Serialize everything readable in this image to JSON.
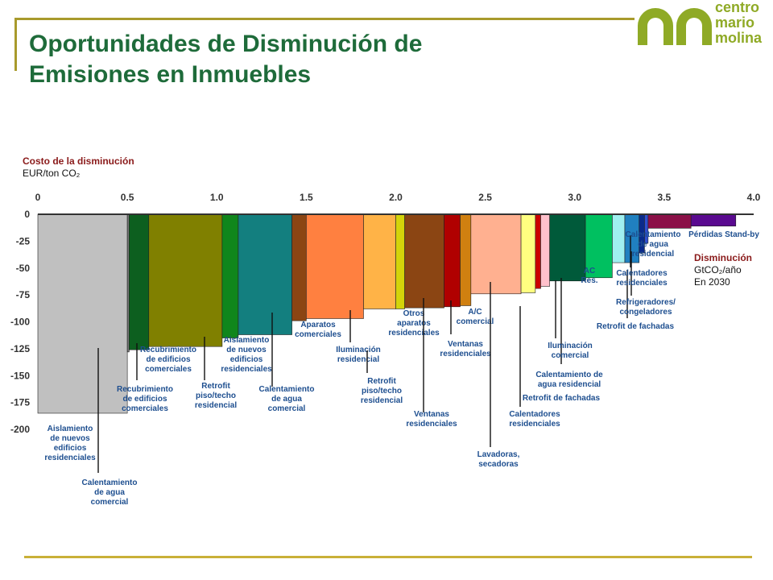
{
  "title_line1": "Oportunidades de Disminución de",
  "title_line2": "Emisiones en Inmuebles",
  "logo": {
    "line1": "centro",
    "line2": "mario",
    "line3": "molina",
    "color": "#8faa26"
  },
  "y_axis": {
    "title": "Costo de la disminución",
    "unit": "EUR/ton CO₂"
  },
  "x_axis": {
    "title": "Disminución",
    "unit": "GtCO₂/año",
    "note": "En 2030"
  },
  "chart_data": {
    "type": "bar",
    "subtype": "marginal-abatement-cost-curve",
    "xlim": [
      0,
      4.0
    ],
    "ylim": [
      -200,
      0
    ],
    "x_ticks": [
      "0",
      "0.5",
      "1.0",
      "1.5",
      "2.0",
      "2.5",
      "3.0",
      "3.5",
      "4.0"
    ],
    "y_ticks": [
      "0",
      "-25",
      "-50",
      "-75",
      "-100",
      "-125",
      "-150",
      "-175",
      "-200"
    ],
    "bars": [
      {
        "label": "Aislamiento de nuevos edificios residenciales",
        "x0": 0.0,
        "x1": 0.5,
        "cost": -185,
        "color": "#c0c0c0"
      },
      {
        "label": "Calentamiento de agua comercial",
        "x0": 0.5,
        "x1": 0.51,
        "cost": -128,
        "color": "#7a7a7a"
      },
      {
        "label": "Recubrimiento de edificios comerciales",
        "x0": 0.51,
        "x1": 0.62,
        "cost": -126,
        "color": "#0d5f1f"
      },
      {
        "label": "Recubrimiento de edificios comerciales",
        "x0": 0.62,
        "x1": 1.03,
        "cost": -123,
        "color": "#808000"
      },
      {
        "label": "Retrofit piso/techo residencial",
        "x0": 1.03,
        "x1": 1.12,
        "cost": -115,
        "color": "#10861c"
      },
      {
        "label": "Aislamiento de nuevos edificios residenciales",
        "x0": 1.12,
        "x1": 1.42,
        "cost": -112,
        "color": "#137f7f"
      },
      {
        "label": "Calentamiento de agua comercial",
        "x0": 1.42,
        "x1": 1.5,
        "cost": -99,
        "color": "#8b4513"
      },
      {
        "label": "Aparatos comerciales",
        "x0": 1.5,
        "x1": 1.82,
        "cost": -97,
        "color": "#ff8040"
      },
      {
        "label": "Iluminación residencial",
        "x0": 1.82,
        "x1": 2.0,
        "cost": -88,
        "color": "#ffb347"
      },
      {
        "label": "Retrofit piso/techo residencial",
        "x0": 2.0,
        "x1": 2.05,
        "cost": -88,
        "color": "#d4d40a"
      },
      {
        "label": "Otros aparatos residenciales",
        "x0": 2.05,
        "x1": 2.27,
        "cost": -87,
        "color": "#8b4513"
      },
      {
        "label": "Ventanas residenciales",
        "x0": 2.27,
        "x1": 2.36,
        "cost": -86,
        "color": "#b00000"
      },
      {
        "label": "Ventanas residenciales",
        "x0": 2.36,
        "x1": 2.42,
        "cost": -85,
        "color": "#d08010"
      },
      {
        "label": "A/C comercial",
        "x0": 2.42,
        "x1": 2.7,
        "cost": -74,
        "color": "#ffb090"
      },
      {
        "label": "Lavadoras, secadoras",
        "x0": 2.7,
        "x1": 2.78,
        "cost": -73,
        "color": "#ffff80"
      },
      {
        "label": "Calentadores residenciales",
        "x0": 2.78,
        "x1": 2.81,
        "cost": -69,
        "color": "#cc0000"
      },
      {
        "label": "Retrofit de fachadas",
        "x0": 2.81,
        "x1": 2.86,
        "cost": -67,
        "color": "#ffc0cb"
      },
      {
        "label": "Calentamiento de agua residencial",
        "x0": 2.86,
        "x1": 3.06,
        "cost": -62,
        "color": "#005a3a"
      },
      {
        "label": "Iluminación comercial",
        "x0": 3.06,
        "x1": 3.21,
        "cost": -59,
        "color": "#00c060"
      },
      {
        "label": "AC Res.",
        "x0": 3.21,
        "x1": 3.28,
        "cost": -45,
        "color": "#a0f0f0"
      },
      {
        "label": "Retrofit de fachadas",
        "x0": 3.28,
        "x1": 3.36,
        "cost": -45,
        "color": "#2080c0"
      },
      {
        "label": "Refrigeradores/ congeladores",
        "x0": 3.36,
        "x1": 3.39,
        "cost": -36,
        "color": "#0a2a8a"
      },
      {
        "label": "Calentadores residenciales",
        "x0": 3.39,
        "x1": 3.41,
        "cost": -27,
        "color": "#3050d0"
      },
      {
        "label": "Calentamiento de agua residencial",
        "x0": 3.41,
        "x1": 3.65,
        "cost": -13,
        "color": "#8b1048"
      },
      {
        "label": "Pérdidas Stand-by",
        "x0": 3.65,
        "x1": 3.9,
        "cost": -11,
        "color": "#5a0a90"
      }
    ],
    "annotations": [
      {
        "lines": [
          "Aislamiento",
          "de nuevos",
          "edificios",
          "residenciales"
        ],
        "color": "#1d4e8f"
      },
      {
        "lines": [
          "Calentamiento",
          "de agua",
          "comercial"
        ],
        "color": "#1d4e8f"
      },
      {
        "lines": [
          "Recubrimiento",
          "de edificios",
          "comerciales"
        ],
        "color": "#1d4e8f"
      },
      {
        "lines": [
          "Recubrimiento",
          "de edificios",
          "comerciales"
        ],
        "color": "#1d4e8f"
      },
      {
        "lines": [
          "Retrofit",
          "piso/techo",
          "residencial"
        ],
        "color": "#1d4e8f"
      },
      {
        "lines": [
          "Aislamiento",
          "de nuevos",
          "edificios",
          "residenciales"
        ],
        "color": "#1d4e8f"
      },
      {
        "lines": [
          "Calentamiento",
          "de agua",
          "comercial"
        ],
        "color": "#1d4e8f"
      },
      {
        "lines": [
          "Aparatos",
          "comerciales"
        ],
        "color": "#1d4e8f"
      },
      {
        "lines": [
          "Iluminación",
          "residencial"
        ],
        "color": "#1d4e8f"
      },
      {
        "lines": [
          "Retrofit",
          "piso/techo",
          "residencial"
        ],
        "color": "#1d4e8f"
      },
      {
        "lines": [
          "Otros",
          "aparatos",
          "residenciales"
        ],
        "color": "#1d4e8f"
      },
      {
        "lines": [
          "Ventanas",
          "residenciales"
        ],
        "color": "#1d4e8f"
      },
      {
        "lines": [
          "Ventanas",
          "residenciales"
        ],
        "color": "#1d4e8f"
      },
      {
        "lines": [
          "A/C",
          "comercial"
        ],
        "color": "#1d4e8f"
      },
      {
        "lines": [
          "Lavadoras,",
          "secadoras"
        ],
        "color": "#1d4e8f"
      },
      {
        "lines": [
          "Calentadores",
          "residenciales"
        ],
        "color": "#1d4e8f"
      },
      {
        "lines": [
          "Retrofit de fachadas"
        ],
        "color": "#1d4e8f"
      },
      {
        "lines": [
          "Calentamiento de",
          "agua residencial"
        ],
        "color": "#1d4e8f"
      },
      {
        "lines": [
          "Iluminación",
          "comercial"
        ],
        "color": "#1d4e8f"
      },
      {
        "lines": [
          "AC",
          "Res."
        ],
        "color": "#1d4e8f"
      },
      {
        "lines": [
          "Retrofit de fachadas"
        ],
        "color": "#1d4e8f"
      },
      {
        "lines": [
          "Refrigeradores/",
          "congeladores"
        ],
        "color": "#1d4e8f"
      },
      {
        "lines": [
          "Calentadores",
          "residenciales"
        ],
        "color": "#1d4e8f"
      },
      {
        "lines": [
          "Calentamiento",
          "de agua",
          "residencial"
        ],
        "color": "#1d4e8f"
      },
      {
        "lines": [
          "Pérdidas Stand-by"
        ],
        "color": "#1d4e8f"
      }
    ]
  }
}
